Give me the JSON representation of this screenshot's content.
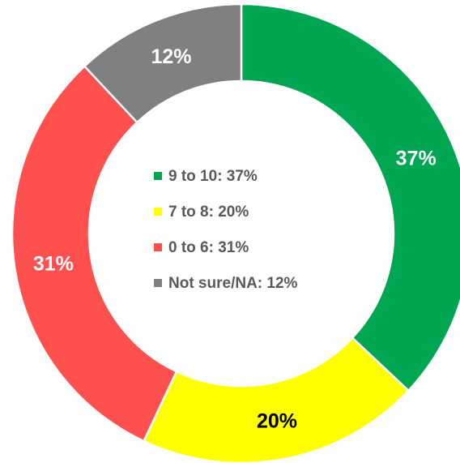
{
  "chart_data": {
    "type": "donut",
    "categories": [
      "9 to 10: 37%",
      "7 to 8: 20%",
      "0 to 6: 31%",
      "Not sure/NA: 12%"
    ],
    "values": [
      37,
      20,
      31,
      12
    ],
    "value_labels": [
      "37%",
      "20%",
      "31%",
      "12%"
    ],
    "colors": [
      "#00a651",
      "#ffff00",
      "#ff5050",
      "#808080"
    ],
    "label_colors": [
      "#ffffff",
      "#000000",
      "#ffffff",
      "#ffffff"
    ],
    "legend": "center"
  }
}
